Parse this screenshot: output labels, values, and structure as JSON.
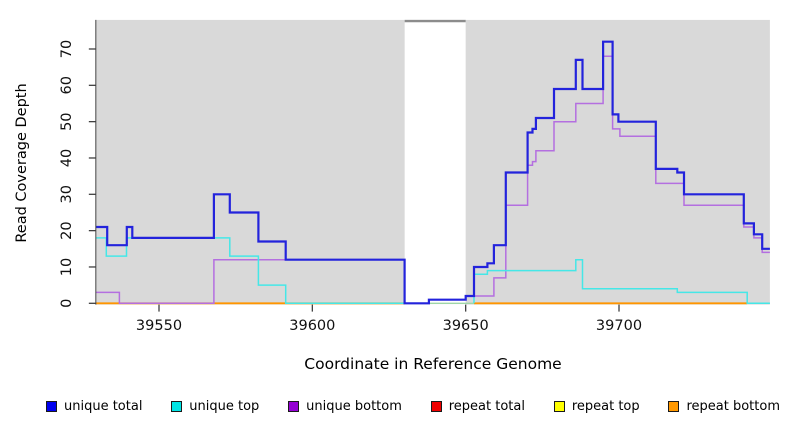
{
  "figure": {
    "xlabel": "Coordinate in Reference Genome",
    "ylabel": "Read Coverage Depth"
  },
  "legend": {
    "items": [
      {
        "label": "unique total",
        "color": "#0000ee"
      },
      {
        "label": "unique top",
        "color": "#00e5e5"
      },
      {
        "label": "unique bottom",
        "color": "#9400d3"
      },
      {
        "label": "repeat total",
        "color": "#ee0000"
      },
      {
        "label": "repeat top",
        "color": "#ffff00"
      },
      {
        "label": "repeat bottom",
        "color": "#ff9800"
      }
    ]
  },
  "chart_data": {
    "type": "line",
    "subtype": "step",
    "title": "",
    "xlabel": "Coordinate in Reference Genome",
    "ylabel": "Read Coverage Depth",
    "xlim": [
      39529.4,
      39749.2
    ],
    "ylim": [
      0,
      78
    ],
    "x_ticks": [
      39550,
      39600,
      39650,
      39700
    ],
    "y_ticks": [
      0,
      10,
      20,
      30,
      40,
      50,
      60,
      70
    ],
    "grid": false,
    "legend_position": "bottom",
    "plot_bg": "#d9d9d9",
    "baseline": {
      "y": 0,
      "color": "#9fd6a7"
    },
    "masked_region": {
      "x0": 39630.1,
      "x1": 39650.0,
      "color": "#ffffff",
      "top_edge_color": "#8c8c8c"
    },
    "series": [
      {
        "name": "repeat total",
        "color": "#e60000",
        "width": 1.4,
        "segments": [
          [
            [
              39529.4,
              0
            ],
            [
              39630.1,
              0
            ]
          ],
          [
            [
              39652.7,
              0
            ],
            [
              39741.8,
              0
            ]
          ]
        ]
      },
      {
        "name": "repeat top",
        "color": "#f5f500",
        "width": 1.4,
        "segments": [
          [
            [
              39529.4,
              0
            ],
            [
              39630.1,
              0
            ]
          ],
          [
            [
              39652.7,
              0
            ],
            [
              39741.8,
              0
            ]
          ]
        ]
      },
      {
        "name": "repeat bottom",
        "color": "#ff9500",
        "width": 1.8,
        "segments": [
          [
            [
              39529.4,
              0
            ],
            [
              39630.1,
              0
            ]
          ],
          [
            [
              39652.7,
              0
            ],
            [
              39741.8,
              0
            ]
          ]
        ]
      },
      {
        "name": "unique bottom",
        "color": "#b46fe0",
        "width": 1.5,
        "segments": [
          [
            [
              39529.4,
              3
            ],
            [
              39537.1,
              0
            ],
            [
              39567.9,
              12
            ],
            [
              39630.1,
              0
            ],
            [
              39638,
              1
            ],
            [
              39650,
              2
            ],
            [
              39659.2,
              7
            ],
            [
              39663.1,
              27
            ],
            [
              39670.2,
              38
            ],
            [
              39671.8,
              39
            ],
            [
              39672.9,
              42
            ],
            [
              39678.8,
              50
            ],
            [
              39685.9,
              55
            ],
            [
              39694.8,
              68
            ],
            [
              39697.9,
              48
            ],
            [
              39700.3,
              46
            ],
            [
              39712,
              33
            ],
            [
              39721.2,
              27
            ],
            [
              39740.7,
              21
            ],
            [
              39744,
              18
            ],
            [
              39746.7,
              14
            ],
            [
              39749.2,
              14
            ]
          ]
        ]
      },
      {
        "name": "unique top",
        "color": "#45e7e7",
        "width": 1.5,
        "segments": [
          [
            [
              39529.4,
              18
            ],
            [
              39532.8,
              13
            ],
            [
              39539.4,
              18
            ],
            [
              39573.1,
              13
            ],
            [
              39582.4,
              5
            ],
            [
              39591.3,
              0
            ],
            [
              39630.1,
              0
            ]
          ],
          [
            [
              39652.7,
              0
            ],
            [
              39652.7,
              8
            ],
            [
              39657.1,
              9
            ],
            [
              39685.9,
              12
            ],
            [
              39688.1,
              4
            ],
            [
              39719,
              3
            ],
            [
              39741.8,
              0
            ],
            [
              39749.2,
              0
            ]
          ]
        ]
      },
      {
        "name": "unique total",
        "color": "#2323dc",
        "width": 2.2,
        "segments": [
          [
            [
              39529.4,
              21
            ],
            [
              39533.1,
              16
            ],
            [
              39539.5,
              21
            ],
            [
              39541.3,
              18
            ],
            [
              39567.9,
              30
            ],
            [
              39573.1,
              25
            ],
            [
              39582.4,
              17
            ],
            [
              39591.3,
              12
            ],
            [
              39630.1,
              0
            ],
            [
              39638,
              1
            ],
            [
              39650,
              2
            ],
            [
              39652.7,
              10
            ],
            [
              39657.1,
              11
            ],
            [
              39659.2,
              16
            ],
            [
              39663.1,
              36
            ],
            [
              39670.2,
              47
            ],
            [
              39671.8,
              48
            ],
            [
              39672.9,
              51
            ],
            [
              39678.8,
              59
            ],
            [
              39685.9,
              67
            ],
            [
              39688.1,
              59
            ],
            [
              39694.8,
              72
            ],
            [
              39697.9,
              52
            ],
            [
              39699.8,
              50
            ],
            [
              39712,
              37
            ],
            [
              39719,
              36
            ],
            [
              39721.2,
              30
            ],
            [
              39740.7,
              22
            ],
            [
              39744,
              19
            ],
            [
              39746.7,
              15
            ],
            [
              39749.2,
              15
            ]
          ]
        ]
      }
    ]
  }
}
